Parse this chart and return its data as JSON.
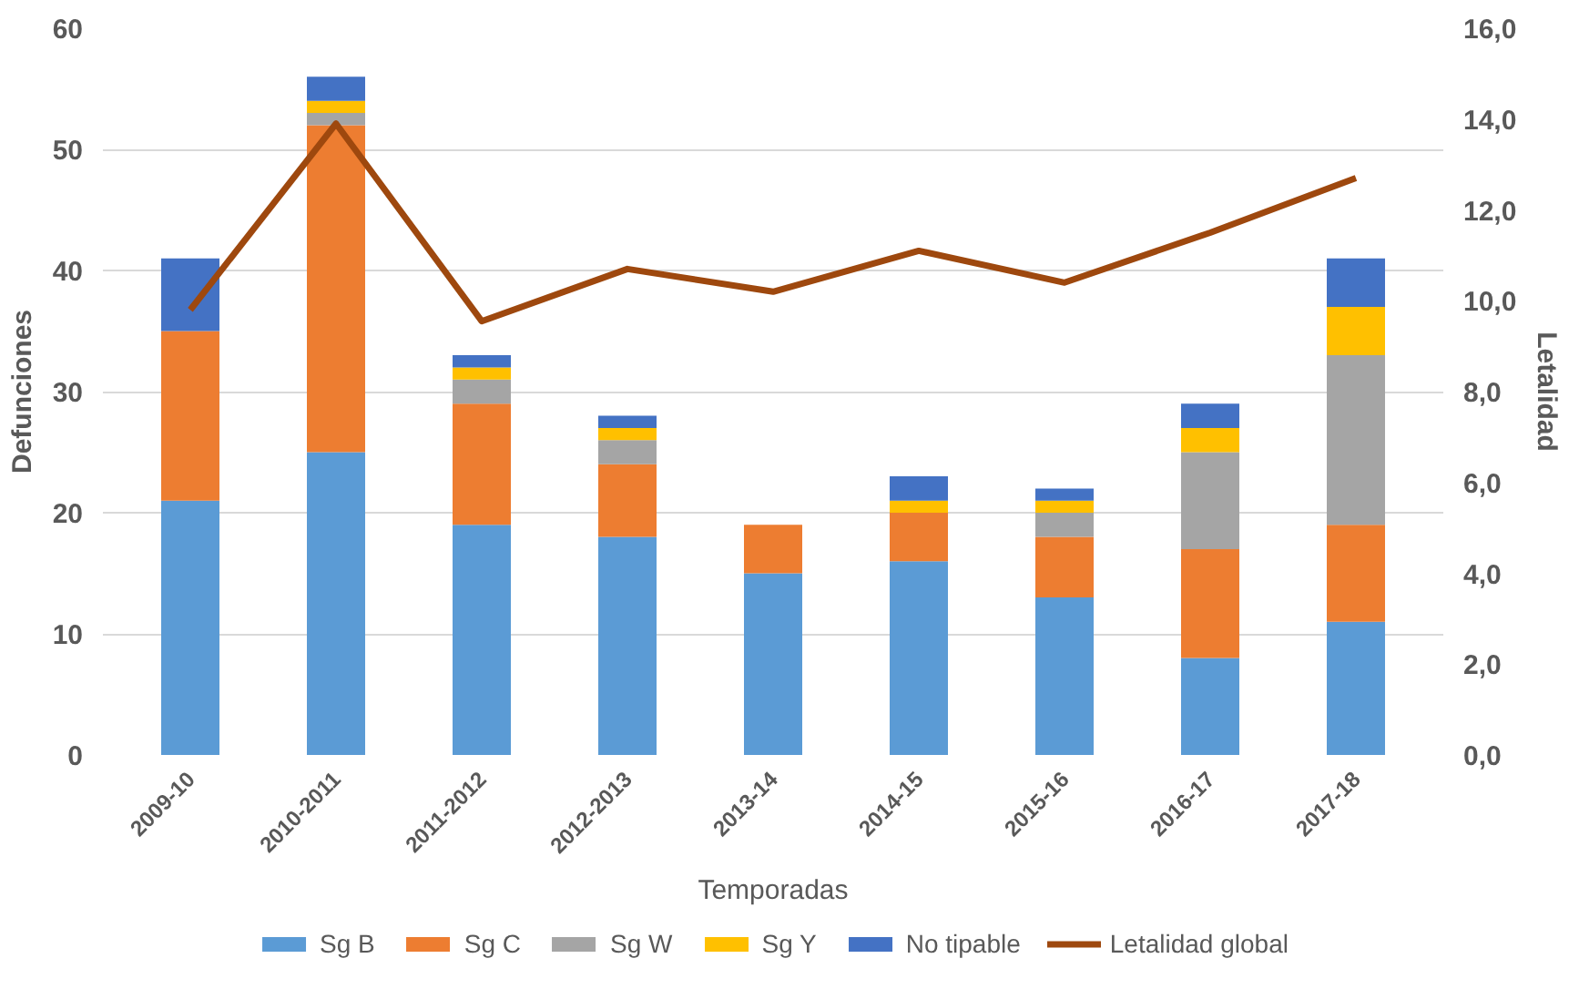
{
  "chart_data": {
    "type": "bar",
    "stacked": true,
    "xlabel": "Temporadas",
    "ylabel": "Defunciones",
    "y2label": "Letalidad",
    "categories": [
      "2009-10",
      "2010-2011",
      "2011-2012",
      "2012-2013",
      "2013-14",
      "2014-15",
      "2015-16",
      "2016-17",
      "2017-18"
    ],
    "series": [
      {
        "name": "Sg B",
        "color": "#5b9bd5",
        "values": [
          21,
          25,
          19,
          18,
          15,
          16,
          13,
          8,
          11
        ]
      },
      {
        "name": "Sg C",
        "color": "#ed7d31",
        "values": [
          14,
          27,
          10,
          6,
          4,
          4,
          5,
          9,
          8
        ]
      },
      {
        "name": "Sg W",
        "color": "#a5a5a5",
        "values": [
          0,
          1,
          2,
          2,
          0,
          0,
          2,
          8,
          14
        ]
      },
      {
        "name": "Sg Y",
        "color": "#ffc000",
        "values": [
          0,
          1,
          1,
          1,
          0,
          1,
          1,
          2,
          4
        ]
      },
      {
        "name": "No tipable",
        "color": "#4472c4",
        "values": [
          6,
          2,
          1,
          1,
          0,
          2,
          1,
          2,
          4
        ]
      },
      {
        "name": "Letalidad global",
        "color": "#9e480e",
        "type": "line",
        "axis": "y2",
        "values": [
          9.8,
          13.9,
          9.55,
          10.7,
          10.2,
          11.1,
          10.4,
          11.5,
          12.7
        ]
      }
    ],
    "ylim": [
      0,
      60
    ],
    "yticks": [
      0,
      10,
      20,
      30,
      40,
      50,
      60
    ],
    "y2lim": [
      0,
      16
    ],
    "y2ticks": [
      {
        "value": 0,
        "label": "0,0"
      },
      {
        "value": 2,
        "label": "2,0"
      },
      {
        "value": 4,
        "label": "4,0"
      },
      {
        "value": 6,
        "label": "6,0"
      },
      {
        "value": 8,
        "label": "8,0"
      },
      {
        "value": 10,
        "label": "10,0"
      },
      {
        "value": 12,
        "label": "12,0"
      },
      {
        "value": 14,
        "label": "14,0"
      },
      {
        "value": 16,
        "label": "16,0"
      }
    ],
    "grid": "y",
    "legend": "bottom",
    "marker": "none",
    "line_style": "solid"
  }
}
